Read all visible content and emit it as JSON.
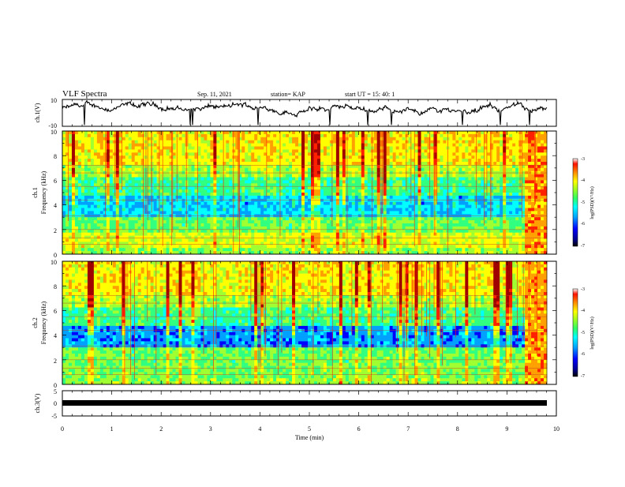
{
  "header": {
    "title": "VLF Spectra",
    "date": "Sep. 11, 2021",
    "station": "station= KAP",
    "start": "start  UT =   15: 40: 1"
  },
  "chart_data": [
    {
      "type": "line",
      "panel": "ch1-waveform",
      "ylabel": "ch.1(V)",
      "ylim": [
        -10,
        10
      ],
      "yticks": [
        "10",
        "-10"
      ],
      "xlim": [
        0,
        10
      ],
      "note_series": "continuous noisy voltage trace around +3 V"
    },
    {
      "type": "heatmap",
      "panel": "ch1-spectrogram",
      "ylabel_top": "ch.1",
      "ylabel": "Frequency  (kHz)",
      "ylim": [
        0,
        10
      ],
      "yticks": [
        "0",
        "2",
        "4",
        "6",
        "8",
        "10"
      ],
      "xlim": [
        0,
        10
      ],
      "colorbar": {
        "label": "log(PSD)(V²/Hz)",
        "range": [
          -7,
          -3
        ],
        "ticks": [
          "-3",
          "-4",
          "-5",
          "-6",
          "-7"
        ]
      }
    },
    {
      "type": "heatmap",
      "panel": "ch2-spectrogram",
      "ylabel_top": "ch.2",
      "ylabel": "Frequency  (kHz)",
      "ylim": [
        0,
        10
      ],
      "yticks": [
        "0",
        "2",
        "4",
        "6",
        "8",
        "10"
      ],
      "xlim": [
        0,
        10
      ],
      "colorbar": {
        "label": "log(PSD)(V²/Hz)",
        "range": [
          -7,
          -3
        ],
        "ticks": [
          "-3",
          "-4",
          "-5",
          "-6",
          "-7"
        ]
      }
    },
    {
      "type": "line",
      "panel": "ch3-waveform",
      "ylabel": "ch.3(V)",
      "ylim": [
        -5,
        5
      ],
      "yticks": [
        "5",
        "0",
        "-5"
      ],
      "xlim": [
        0,
        10
      ],
      "xlabel": "Time  (min)",
      "xticks": [
        "0",
        "1",
        "2",
        "3",
        "4",
        "5",
        "6",
        "7",
        "8",
        "9",
        "10"
      ]
    }
  ],
  "colors": {
    "scale": [
      "#00008f",
      "#0000ff",
      "#00a0ff",
      "#00ffff",
      "#30ff80",
      "#a0ff30",
      "#ffff00",
      "#ffa000",
      "#ff2000",
      "#a00000"
    ]
  }
}
